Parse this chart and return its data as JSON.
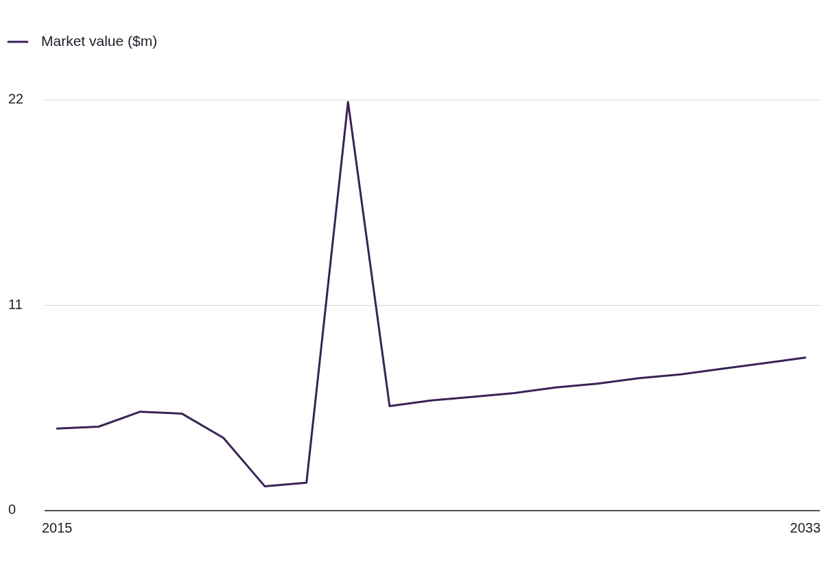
{
  "chart_data": {
    "type": "line",
    "x": [
      2015,
      2016,
      2017,
      2018,
      2019,
      2020,
      2021,
      2022,
      2023,
      2024,
      2025,
      2026,
      2027,
      2028,
      2029,
      2030,
      2031,
      2032,
      2033
    ],
    "series": [
      {
        "name": "Market value ($m)",
        "color": "#3a2256",
        "values": [
          4.4,
          4.5,
          5.3,
          5.2,
          3.9,
          1.3,
          1.5,
          21.9,
          5.6,
          5.9,
          6.1,
          6.3,
          6.6,
          6.8,
          7.1,
          7.3,
          7.6,
          7.9,
          8.2
        ]
      }
    ],
    "xlim": [
      2014.7,
      2033.35
    ],
    "xticks": [
      2015,
      2033
    ],
    "ylim": [
      0,
      22
    ],
    "yticks": [
      0,
      11,
      22
    ],
    "grid": "y",
    "legend": "top left",
    "marker": "none",
    "line_style": "solid"
  }
}
